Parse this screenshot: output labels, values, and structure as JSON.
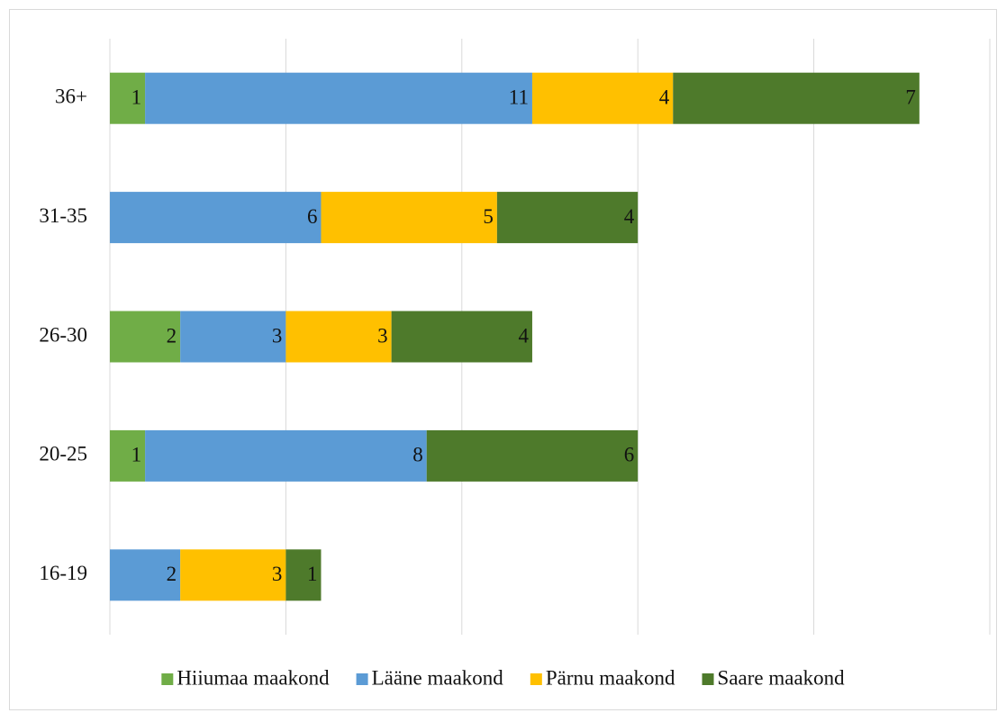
{
  "chart_data": {
    "type": "bar",
    "orientation": "horizontal",
    "stacked": true,
    "categories": [
      "36+",
      "31-35",
      "26-30",
      "20-25",
      "16-19"
    ],
    "series": [
      {
        "name": "Hiiumaa maakond",
        "color": "#70ad47",
        "values": [
          1,
          null,
          2,
          1,
          null
        ]
      },
      {
        "name": "Lääne maakond",
        "color": "#5b9bd5",
        "values": [
          11,
          6,
          3,
          8,
          2
        ]
      },
      {
        "name": "Pärnu maakond",
        "color": "#ffc000",
        "values": [
          4,
          5,
          3,
          null,
          3
        ]
      },
      {
        "name": "Saare maakond",
        "color": "#4e7a2b",
        "values": [
          7,
          4,
          4,
          6,
          1
        ]
      }
    ],
    "xlim": [
      0,
      25
    ],
    "xticks": [
      0,
      5,
      10,
      15,
      20,
      25
    ],
    "grid": true,
    "legend": "bottom"
  }
}
